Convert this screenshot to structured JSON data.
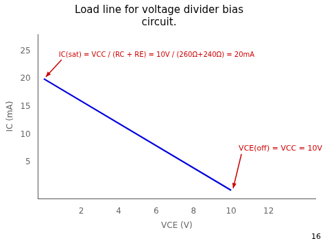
{
  "chart_data": {
    "type": "line",
    "title": [
      "Load line for voltage divider bias",
      "circuit."
    ],
    "x": [
      0,
      10
    ],
    "values": [
      20,
      0
    ],
    "color": "#0000dd",
    "x_label": "VCE (V)",
    "y_label": "IC (mA)",
    "xlim": [
      -0.3,
      14.5
    ],
    "ylim": [
      -1.5,
      28
    ],
    "xticks": [
      2,
      4,
      6,
      8,
      10,
      12
    ],
    "yticks": [
      5,
      10,
      15,
      20,
      25
    ],
    "grid": false,
    "annotations": [
      {
        "text": "IC(sat) = VCC / (RC + RE) = 10V / (260Ω+240Ω) = 20mA",
        "x": 0,
        "y": 20,
        "color": "#cc0000"
      },
      {
        "text": "VCE(off) = VCC = 10V",
        "x": 10,
        "y": 0,
        "color": "#cc0000"
      },
      {
        "text": "16"
      }
    ]
  }
}
